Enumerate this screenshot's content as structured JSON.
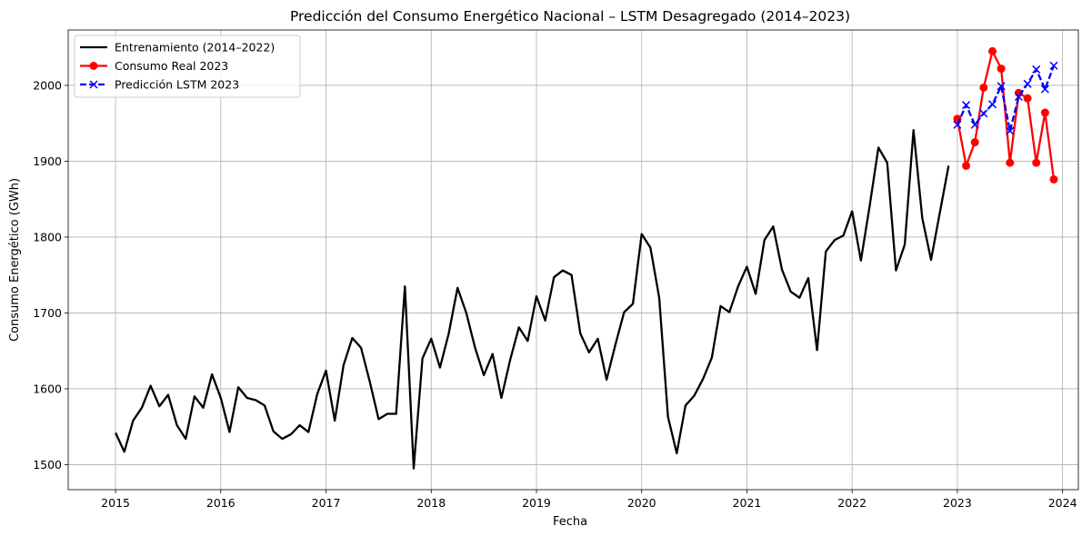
{
  "chart_data": {
    "type": "line",
    "title": "Predicción del Consumo Energético Nacional – LSTM Desagregado (2014–2023)",
    "xlabel": "Fecha",
    "ylabel": "Consumo Energético (GWh)",
    "xlim": [
      2014.55,
      2024.15
    ],
    "ylim": [
      1467,
      2073
    ],
    "x_ticks": [
      2015,
      2016,
      2017,
      2018,
      2019,
      2020,
      2021,
      2022,
      2023,
      2024
    ],
    "x_tick_labels": [
      "2015",
      "2016",
      "2017",
      "2018",
      "2019",
      "2020",
      "2021",
      "2022",
      "2023",
      "2024"
    ],
    "y_ticks": [
      1500,
      1600,
      1700,
      1800,
      1900,
      2000
    ],
    "y_tick_labels": [
      "1500",
      "1600",
      "1700",
      "1800",
      "1900",
      "2000"
    ],
    "grid": true,
    "legend_position": "top-left",
    "series": [
      {
        "name": "Entrenamiento (2014–2022)",
        "color": "#000000",
        "style": "solid",
        "marker": "none",
        "x": [
          "2015-01",
          "2015-02",
          "2015-03",
          "2015-04",
          "2015-05",
          "2015-06",
          "2015-07",
          "2015-08",
          "2015-09",
          "2015-10",
          "2015-11",
          "2015-12",
          "2016-01",
          "2016-02",
          "2016-03",
          "2016-04",
          "2016-05",
          "2016-06",
          "2016-07",
          "2016-08",
          "2016-09",
          "2016-10",
          "2016-11",
          "2016-12",
          "2017-01",
          "2017-02",
          "2017-03",
          "2017-04",
          "2017-05",
          "2017-06",
          "2017-07",
          "2017-08",
          "2017-09",
          "2017-10",
          "2017-11",
          "2017-12",
          "2018-01",
          "2018-02",
          "2018-03",
          "2018-04",
          "2018-05",
          "2018-06",
          "2018-07",
          "2018-08",
          "2018-09",
          "2018-10",
          "2018-11",
          "2018-12",
          "2019-01",
          "2019-02",
          "2019-03",
          "2019-04",
          "2019-05",
          "2019-06",
          "2019-07",
          "2019-08",
          "2019-09",
          "2019-10",
          "2019-11",
          "2019-12",
          "2020-01",
          "2020-02",
          "2020-03",
          "2020-04",
          "2020-05",
          "2020-06",
          "2020-07",
          "2020-08",
          "2020-09",
          "2020-10",
          "2020-11",
          "2020-12",
          "2021-01",
          "2021-02",
          "2021-03",
          "2021-04",
          "2021-05",
          "2021-06",
          "2021-07",
          "2021-08",
          "2021-09",
          "2021-10",
          "2021-11",
          "2021-12",
          "2022-01",
          "2022-02",
          "2022-03",
          "2022-04",
          "2022-05",
          "2022-06",
          "2022-07",
          "2022-08",
          "2022-09",
          "2022-10",
          "2022-11",
          "2022-12"
        ],
        "values": [
          1542,
          1517,
          1558,
          1575,
          1604,
          1577,
          1592,
          1552,
          1534,
          1590,
          1575,
          1619,
          1588,
          1543,
          1602,
          1588,
          1585,
          1578,
          1544,
          1534,
          1540,
          1552,
          1543,
          1593,
          1624,
          1558,
          1631,
          1667,
          1654,
          1609,
          1560,
          1567,
          1567,
          1735,
          1495,
          1640,
          1666,
          1628,
          1673,
          1733,
          1700,
          1654,
          1618,
          1646,
          1588,
          1638,
          1681,
          1663,
          1722,
          1690,
          1747,
          1756,
          1750,
          1673,
          1648,
          1666,
          1612,
          1658,
          1701,
          1712,
          1804,
          1786,
          1720,
          1563,
          1515,
          1578,
          1591,
          1613,
          1641,
          1709,
          1701,
          1735,
          1761,
          1725,
          1796,
          1814,
          1757,
          1728,
          1720,
          1746,
          1651,
          1781,
          1796,
          1802,
          1834,
          1769,
          1841,
          1918,
          1898,
          1756,
          1790,
          1941,
          1825,
          1770,
          1832,
          1894
        ]
      },
      {
        "name": "Consumo Real 2023",
        "color": "#ff0000",
        "style": "solid",
        "marker": "circle",
        "x": [
          "2023-01",
          "2023-02",
          "2023-03",
          "2023-04",
          "2023-05",
          "2023-06",
          "2023-07",
          "2023-08",
          "2023-09",
          "2023-10",
          "2023-11",
          "2023-12"
        ],
        "values": [
          1956,
          1894,
          1925,
          1997,
          2045,
          2022,
          1898,
          1990,
          1983,
          1898,
          1964,
          1876
        ]
      },
      {
        "name": "Predicción LSTM 2023",
        "color": "#0000ff",
        "style": "dashed",
        "marker": "x",
        "x": [
          "2023-01",
          "2023-02",
          "2023-03",
          "2023-04",
          "2023-05",
          "2023-06",
          "2023-07",
          "2023-08",
          "2023-09",
          "2023-10",
          "2023-11",
          "2023-12"
        ],
        "values": [
          1948,
          1974,
          1948,
          1963,
          1975,
          1999,
          1940,
          1985,
          2002,
          2021,
          1995,
          2026
        ]
      }
    ]
  }
}
